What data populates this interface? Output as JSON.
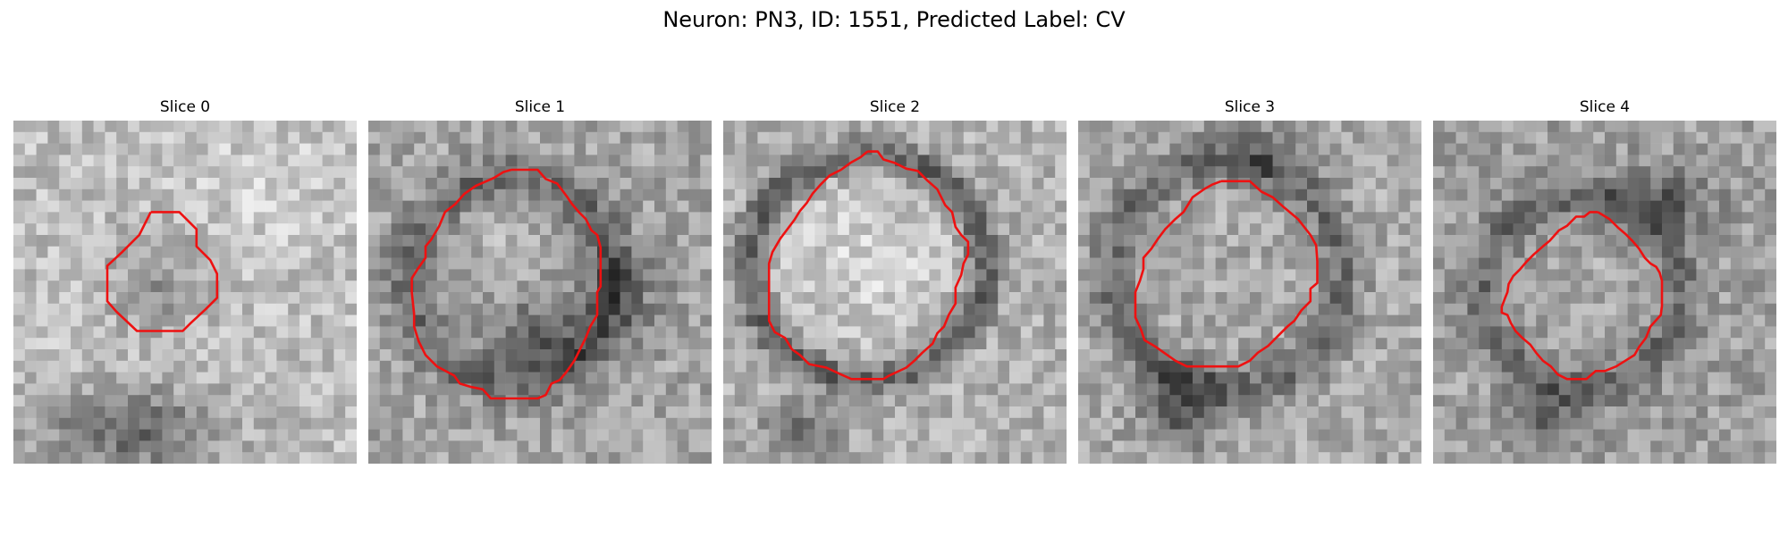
{
  "figure": {
    "title": "Neuron: PN3, ID: 1551, Predicted Label: CV"
  },
  "slices": [
    {
      "title": "Slice 0",
      "contour": [
        [
          12,
          8
        ],
        [
          14.5,
          8
        ],
        [
          16,
          9.5
        ],
        [
          16,
          11
        ],
        [
          17.2,
          12.2
        ],
        [
          17.8,
          13.4
        ],
        [
          17.8,
          15.5
        ],
        [
          16.8,
          16.5
        ],
        [
          15.5,
          17.7
        ],
        [
          14.8,
          18.4
        ],
        [
          12.8,
          18.4
        ],
        [
          10.8,
          18.4
        ],
        [
          9,
          16.7
        ],
        [
          8.2,
          15.8
        ],
        [
          8.2,
          12.7
        ],
        [
          9.5,
          11.5
        ],
        [
          11,
          10
        ]
      ]
    },
    {
      "title": "Slice 1",
      "contour": [
        [
          12.5,
          4.3
        ],
        [
          14.8,
          4.3
        ],
        [
          15.5,
          5.1
        ],
        [
          16.5,
          5.5
        ],
        [
          17.4,
          6.7
        ],
        [
          17.8,
          7.3
        ],
        [
          18.4,
          8
        ],
        [
          19,
          8.6
        ],
        [
          19.5,
          9.6
        ],
        [
          20,
          10
        ],
        [
          20.3,
          11.1
        ],
        [
          20.3,
          12.5
        ],
        [
          20.3,
          14.5
        ],
        [
          20,
          15
        ],
        [
          20,
          17
        ],
        [
          19.4,
          18
        ],
        [
          19,
          19
        ],
        [
          18.5,
          20
        ],
        [
          18,
          21
        ],
        [
          17.3,
          22
        ],
        [
          16.7,
          22.7
        ],
        [
          16,
          23
        ],
        [
          15.5,
          24
        ],
        [
          14.8,
          24.3
        ],
        [
          13,
          24.3
        ],
        [
          10.7,
          24.3
        ],
        [
          10,
          23.5
        ],
        [
          9,
          23.3
        ],
        [
          8,
          23
        ],
        [
          7.5,
          22.3
        ],
        [
          6,
          21.5
        ],
        [
          5,
          20.5
        ],
        [
          4.4,
          19.3
        ],
        [
          4,
          18
        ],
        [
          4,
          16.9
        ],
        [
          3.8,
          15
        ],
        [
          3.8,
          13.8
        ],
        [
          4.3,
          13
        ],
        [
          5,
          12
        ],
        [
          5,
          11
        ],
        [
          5.5,
          10.4
        ],
        [
          6.2,
          9.2
        ],
        [
          6.7,
          8
        ],
        [
          7.6,
          7.3
        ],
        [
          8.4,
          6.4
        ],
        [
          9.4,
          5.7
        ],
        [
          10.1,
          5.4
        ],
        [
          11,
          5
        ],
        [
          11.8,
          4.5
        ]
      ]
    },
    {
      "title": "Slice 2",
      "contour": [
        [
          12.6,
          2.7
        ],
        [
          13.5,
          2.7
        ],
        [
          14,
          3.4
        ],
        [
          15,
          3.7
        ],
        [
          16,
          4.2
        ],
        [
          17,
          4.4
        ],
        [
          17.8,
          5.2
        ],
        [
          18.7,
          6
        ],
        [
          19.4,
          7.4
        ],
        [
          20,
          8
        ],
        [
          20.3,
          9.3
        ],
        [
          20.8,
          10
        ],
        [
          21.4,
          10.6
        ],
        [
          21.4,
          11.7
        ],
        [
          21,
          12.5
        ],
        [
          20.8,
          13.5
        ],
        [
          20.3,
          14.6
        ],
        [
          20.3,
          16
        ],
        [
          19.7,
          17
        ],
        [
          19.3,
          18
        ],
        [
          18.7,
          18.6
        ],
        [
          18.3,
          19.5
        ],
        [
          17.4,
          20.3
        ],
        [
          16.7,
          21
        ],
        [
          16,
          21.6
        ],
        [
          14.5,
          22.3
        ],
        [
          14,
          22.6
        ],
        [
          12.8,
          22.6
        ],
        [
          11.2,
          22.6
        ],
        [
          10.3,
          22.2
        ],
        [
          9,
          21.6
        ],
        [
          7.5,
          21.3
        ],
        [
          6.7,
          20.5
        ],
        [
          6,
          20
        ],
        [
          5.4,
          19
        ],
        [
          4.5,
          18.5
        ],
        [
          4,
          17.5
        ],
        [
          4,
          16.5
        ],
        [
          4,
          15
        ],
        [
          4,
          13.5
        ],
        [
          4,
          12.5
        ],
        [
          4.3,
          11.5
        ],
        [
          5,
          10.3
        ],
        [
          5.6,
          9.5
        ],
        [
          6.2,
          8.7
        ],
        [
          6.7,
          7.9
        ],
        [
          7.3,
          7.2
        ],
        [
          7.8,
          6.4
        ],
        [
          8.5,
          5.6
        ],
        [
          9.3,
          4.8
        ],
        [
          10.3,
          4.3
        ],
        [
          11.1,
          3.7
        ],
        [
          12,
          3.2
        ]
      ]
    },
    {
      "title": "Slice 3",
      "contour": [
        [
          12.5,
          5.3
        ],
        [
          15,
          5.3
        ],
        [
          16,
          6.2
        ],
        [
          17,
          6.7
        ],
        [
          18,
          7.6
        ],
        [
          19.2,
          8.6
        ],
        [
          20.3,
          10
        ],
        [
          20.8,
          10.9
        ],
        [
          20.9,
          12.3
        ],
        [
          20.9,
          14.2
        ],
        [
          20.3,
          14.7
        ],
        [
          20.3,
          15.8
        ],
        [
          19.5,
          16.6
        ],
        [
          18.9,
          17.5
        ],
        [
          18.3,
          18
        ],
        [
          17.5,
          18.8
        ],
        [
          16.6,
          19.7
        ],
        [
          15.7,
          20.3
        ],
        [
          15,
          21
        ],
        [
          14,
          21.5
        ],
        [
          12.5,
          21.5
        ],
        [
          10.5,
          21.5
        ],
        [
          9.5,
          21.5
        ],
        [
          8.5,
          21
        ],
        [
          7.5,
          20.3
        ],
        [
          6.8,
          19.8
        ],
        [
          5.8,
          19.2
        ],
        [
          5.5,
          18.3
        ],
        [
          5,
          17.2
        ],
        [
          5,
          16.1
        ],
        [
          5,
          15
        ],
        [
          5.4,
          14
        ],
        [
          5.7,
          13
        ],
        [
          5.7,
          12
        ],
        [
          6.4,
          11.2
        ],
        [
          7,
          10.3
        ],
        [
          7.6,
          9.5
        ],
        [
          8.5,
          8.6
        ],
        [
          9.2,
          8
        ],
        [
          10,
          6.7
        ],
        [
          11,
          6
        ],
        [
          11.7,
          5.6
        ]
      ]
    },
    {
      "title": "Slice 4",
      "contour": [
        [
          14.4,
          8
        ],
        [
          15.4,
          8.6
        ],
        [
          16.2,
          9.4
        ],
        [
          16.8,
          9.9
        ],
        [
          17.4,
          10.5
        ],
        [
          18,
          11.2
        ],
        [
          18.5,
          12
        ],
        [
          19,
          12.5
        ],
        [
          19.5,
          12.8
        ],
        [
          19.8,
          13.3
        ],
        [
          20,
          14
        ],
        [
          20,
          15
        ],
        [
          20,
          16.2
        ],
        [
          19.9,
          17
        ],
        [
          19,
          18
        ],
        [
          18.6,
          19
        ],
        [
          18,
          19.8
        ],
        [
          17.6,
          20.5
        ],
        [
          16.8,
          21
        ],
        [
          16,
          21.5
        ],
        [
          15,
          21.9
        ],
        [
          14.2,
          21.9
        ],
        [
          13.4,
          22.6
        ],
        [
          12.6,
          22.6
        ],
        [
          11.7,
          22.6
        ],
        [
          10.9,
          22.2
        ],
        [
          10.3,
          21.5
        ],
        [
          9.6,
          21
        ],
        [
          9,
          20.3
        ],
        [
          8.5,
          19.6
        ],
        [
          7.8,
          19
        ],
        [
          7.2,
          18.4
        ],
        [
          6.8,
          17.7
        ],
        [
          6.5,
          17
        ],
        [
          6,
          16.8
        ],
        [
          6,
          16.3
        ],
        [
          6.3,
          15.5
        ],
        [
          6.5,
          15
        ],
        [
          6.6,
          14.3
        ],
        [
          7,
          13.6
        ],
        [
          7.6,
          13
        ],
        [
          8.2,
          12.3
        ],
        [
          8.8,
          11.7
        ],
        [
          9.6,
          11
        ],
        [
          10.2,
          10.5
        ],
        [
          11,
          9.6
        ],
        [
          11.7,
          9.2
        ],
        [
          12.5,
          8.4
        ],
        [
          13.2,
          8.4
        ],
        [
          13.7,
          8
        ]
      ]
    }
  ],
  "style": {
    "contour_color": "#ee1111"
  }
}
